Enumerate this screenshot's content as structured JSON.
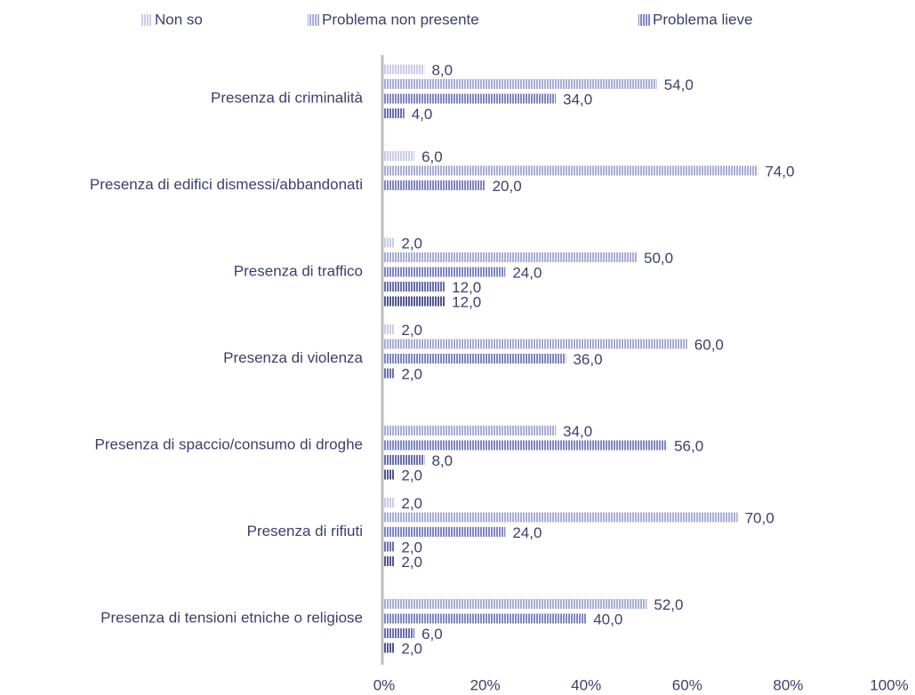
{
  "chart_data": {
    "type": "bar",
    "orientation": "horizontal",
    "categories": [
      "Presenza di criminalità",
      "Presenza di edifici dismessi/abbandonati",
      "Presenza di traffico",
      "Presenza di violenza",
      "Presenza di spaccio/consumo di droghe",
      "Presenza di rifiuti",
      "Presenza di tensioni etniche o religiose"
    ],
    "series": [
      {
        "name": "Non so",
        "color": "#c9cce8",
        "values": [
          8,
          6,
          2,
          2,
          null,
          2,
          null
        ],
        "value_labels": [
          "8,0",
          "6,0",
          "2,0",
          "2,0",
          null,
          "2,0",
          null
        ]
      },
      {
        "name": "Problema non presente",
        "color": "#a7acdb",
        "values": [
          54,
          74,
          50,
          60,
          34,
          70,
          52
        ],
        "value_labels": [
          "54,0",
          "74,0",
          "50,0",
          "60,0",
          "34,0",
          "70,0",
          "52,0"
        ]
      },
      {
        "name": "Problema lieve",
        "color": "#7f85c8",
        "values": [
          34,
          20,
          24,
          36,
          56,
          24,
          40
        ],
        "value_labels": [
          "34,0",
          "20,0",
          "24,0",
          "36,0",
          "56,0",
          "24,0",
          "40,0"
        ]
      },
      {
        "color": "#686db2",
        "values": [
          4,
          null,
          12,
          2,
          8,
          2,
          6
        ],
        "value_labels": [
          "4,0",
          null,
          "12,0",
          "2,0",
          "8,0",
          "2,0",
          "6,0"
        ]
      },
      {
        "color": "#50558f",
        "values": [
          null,
          null,
          12,
          null,
          2,
          2,
          2
        ],
        "value_labels": [
          null,
          null,
          "12,0",
          null,
          "2,0",
          "2,0",
          "2,0"
        ]
      }
    ],
    "xlim": [
      0,
      100
    ],
    "xticks": [
      {
        "value": 0,
        "label": "0%"
      },
      {
        "value": 20,
        "label": "20%"
      },
      {
        "value": 40,
        "label": "40%"
      },
      {
        "value": 60,
        "label": "60%"
      },
      {
        "value": 80,
        "label": "80%"
      },
      {
        "value": 100,
        "label": "100%"
      }
    ],
    "legend": "top"
  }
}
